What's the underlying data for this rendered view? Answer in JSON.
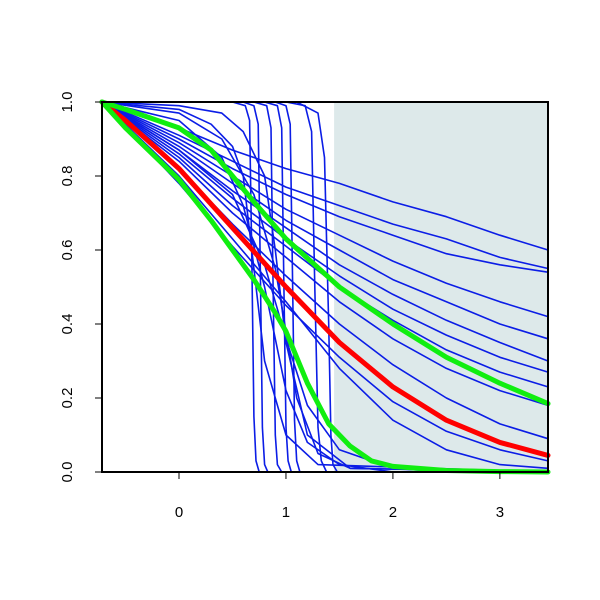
{
  "chart_data": {
    "type": "line",
    "title": "",
    "xlabel": "",
    "ylabel": "",
    "xlim": [
      -0.72,
      3.45
    ],
    "ylim": [
      0.0,
      1.0
    ],
    "x_ticks": [
      {
        "value": 0,
        "label": "0"
      },
      {
        "value": 1,
        "label": "1"
      },
      {
        "value": 2,
        "label": "2"
      },
      {
        "value": 3,
        "label": "3"
      }
    ],
    "y_ticks": [
      {
        "value": 0.0,
        "label": "0.0"
      },
      {
        "value": 0.2,
        "label": "0.2"
      },
      {
        "value": 0.4,
        "label": "0.4"
      },
      {
        "value": 0.6,
        "label": "0.6"
      },
      {
        "value": 0.8,
        "label": "0.8"
      },
      {
        "value": 1.0,
        "label": "1.0"
      }
    ],
    "grid": false,
    "legend": "none",
    "shaded_region": {
      "x_from": 1.45,
      "x_to": 3.45,
      "y_from": 0.0,
      "y_to": 1.0,
      "color": "#dde9ea"
    },
    "colors": {
      "sample_curves": "#0b1de6",
      "mean_curve": "#ff0000",
      "band_curves": "#10ee10"
    },
    "series": [
      {
        "role": "sample",
        "x": [
          -0.72,
          0,
          0.5,
          1,
          1.5,
          2,
          2.5,
          3,
          3.45
        ],
        "y": [
          1.0,
          0.93,
          0.87,
          0.82,
          0.78,
          0.73,
          0.69,
          0.64,
          0.6
        ]
      },
      {
        "role": "sample",
        "x": [
          -0.72,
          0,
          0.5,
          1,
          1.5,
          2,
          2.5,
          3,
          3.45
        ],
        "y": [
          1.0,
          0.91,
          0.84,
          0.77,
          0.72,
          0.67,
          0.63,
          0.58,
          0.55
        ]
      },
      {
        "role": "sample",
        "x": [
          -0.72,
          0,
          0.5,
          1,
          1.5,
          2,
          2.5,
          3,
          3.45
        ],
        "y": [
          1.0,
          0.9,
          0.82,
          0.75,
          0.69,
          0.64,
          0.59,
          0.56,
          0.54
        ]
      },
      {
        "role": "sample",
        "x": [
          -0.72,
          0,
          0.5,
          1,
          1.5,
          2,
          2.5,
          3,
          3.45
        ],
        "y": [
          1.0,
          0.89,
          0.8,
          0.71,
          0.64,
          0.57,
          0.51,
          0.46,
          0.42
        ]
      },
      {
        "role": "sample",
        "x": [
          -0.72,
          0,
          0.5,
          1,
          1.5,
          2,
          2.5,
          3,
          3.45
        ],
        "y": [
          1.0,
          0.88,
          0.78,
          0.68,
          0.6,
          0.52,
          0.46,
          0.4,
          0.36
        ]
      },
      {
        "role": "sample",
        "x": [
          -0.72,
          0,
          0.5,
          1,
          1.5,
          2,
          2.5,
          3,
          3.45
        ],
        "y": [
          1.0,
          0.87,
          0.76,
          0.66,
          0.56,
          0.48,
          0.41,
          0.35,
          0.3
        ]
      },
      {
        "role": "sample",
        "x": [
          -0.72,
          0,
          0.5,
          1,
          1.5,
          2,
          2.5,
          3,
          3.45
        ],
        "y": [
          1.0,
          0.86,
          0.74,
          0.63,
          0.53,
          0.44,
          0.37,
          0.31,
          0.27
        ]
      },
      {
        "role": "sample",
        "x": [
          -0.72,
          0,
          0.5,
          1,
          1.5,
          2,
          2.5,
          3,
          3.45
        ],
        "y": [
          1.0,
          0.85,
          0.72,
          0.61,
          0.5,
          0.41,
          0.33,
          0.27,
          0.23
        ]
      },
      {
        "role": "sample",
        "x": [
          -0.72,
          0,
          0.5,
          1,
          1.5,
          2,
          2.5,
          3,
          3.45
        ],
        "y": [
          1.0,
          0.84,
          0.7,
          0.58,
          0.46,
          0.36,
          0.28,
          0.22,
          0.18
        ]
      },
      {
        "role": "sample",
        "x": [
          -0.72,
          0,
          0.5,
          1,
          1.5,
          2,
          2.5,
          3,
          3.45
        ],
        "y": [
          1.0,
          0.82,
          0.67,
          0.53,
          0.4,
          0.29,
          0.2,
          0.13,
          0.09
        ]
      },
      {
        "role": "sample",
        "x": [
          -0.72,
          0,
          0.5,
          1,
          1.5,
          2,
          2.5,
          3,
          3.45
        ],
        "y": [
          1.0,
          0.78,
          0.61,
          0.45,
          0.31,
          0.19,
          0.11,
          0.06,
          0.03
        ]
      },
      {
        "role": "sample",
        "x": [
          -0.72,
          0,
          0.5,
          1,
          1.5,
          2,
          2.5,
          3,
          3.45
        ],
        "y": [
          1.0,
          0.8,
          0.63,
          0.46,
          0.28,
          0.14,
          0.06,
          0.02,
          0.01
        ]
      },
      {
        "role": "sample",
        "x": [
          -0.72,
          0,
          0.5,
          0.8,
          1,
          1.2,
          1.5,
          2,
          2.5,
          3.45
        ],
        "y": [
          1.0,
          0.87,
          0.75,
          0.56,
          0.36,
          0.18,
          0.06,
          0.01,
          0.0,
          0.0
        ]
      },
      {
        "role": "sample",
        "x": [
          -0.72,
          0,
          0.4,
          0.6,
          0.8,
          1.0,
          1.2,
          1.5,
          2,
          3.45
        ],
        "y": [
          1.0,
          0.95,
          0.85,
          0.72,
          0.5,
          0.22,
          0.08,
          0.02,
          0.0,
          0.0
        ]
      },
      {
        "role": "sample",
        "x": [
          -0.72,
          0,
          0.3,
          0.5,
          0.6,
          0.7,
          0.8,
          1.0,
          1.3,
          3.45
        ],
        "y": [
          1.0,
          0.98,
          0.94,
          0.88,
          0.8,
          0.55,
          0.3,
          0.1,
          0.02,
          0.0
        ]
      },
      {
        "role": "sample",
        "x": [
          -0.72,
          0,
          0.4,
          0.6,
          0.8,
          0.9,
          1.0,
          1.2,
          1.6,
          3.45
        ],
        "y": [
          1.0,
          0.99,
          0.97,
          0.92,
          0.8,
          0.6,
          0.35,
          0.1,
          0.01,
          0.0
        ]
      },
      {
        "role": "sample",
        "x": [
          -0.72,
          0.5,
          0.62,
          0.66,
          0.68,
          0.7,
          0.72,
          0.75,
          0.8,
          3.45
        ],
        "y": [
          1.0,
          1.0,
          0.99,
          0.95,
          0.6,
          0.15,
          0.03,
          0.0,
          0.0,
          0.0
        ]
      },
      {
        "role": "sample",
        "x": [
          -0.72,
          0.6,
          0.7,
          0.74,
          0.76,
          0.78,
          0.8,
          0.83,
          0.9,
          3.45
        ],
        "y": [
          1.0,
          1.0,
          0.99,
          0.94,
          0.55,
          0.12,
          0.02,
          0.0,
          0.0,
          0.0
        ]
      },
      {
        "role": "sample",
        "x": [
          -0.72,
          0.7,
          0.82,
          0.86,
          0.88,
          0.9,
          0.92,
          0.96,
          1.0,
          3.45
        ],
        "y": [
          1.0,
          1.0,
          0.99,
          0.93,
          0.5,
          0.1,
          0.02,
          0.0,
          0.0,
          0.0
        ]
      },
      {
        "role": "sample",
        "x": [
          -0.72,
          0.8,
          0.92,
          0.96,
          0.98,
          1.0,
          1.02,
          1.05,
          1.1,
          3.45
        ],
        "y": [
          1.0,
          1.0,
          0.99,
          0.93,
          0.52,
          0.12,
          0.03,
          0.0,
          0.0,
          0.0
        ]
      },
      {
        "role": "sample",
        "x": [
          -0.72,
          0.9,
          1.0,
          1.04,
          1.06,
          1.08,
          1.1,
          1.13,
          1.2,
          3.45
        ],
        "y": [
          1.0,
          1.0,
          0.99,
          0.94,
          0.55,
          0.14,
          0.03,
          0.0,
          0.0,
          0.0
        ]
      },
      {
        "role": "sample",
        "x": [
          -0.72,
          1.0,
          1.18,
          1.24,
          1.27,
          1.3,
          1.33,
          1.38,
          1.5,
          3.45
        ],
        "y": [
          1.0,
          1.0,
          0.99,
          0.92,
          0.5,
          0.12,
          0.03,
          0.0,
          0.0,
          0.0
        ]
      },
      {
        "role": "sample",
        "x": [
          -0.72,
          1.1,
          1.3,
          1.36,
          1.4,
          1.42,
          1.44,
          1.48,
          1.6,
          3.45
        ],
        "y": [
          1.0,
          1.0,
          0.97,
          0.85,
          0.4,
          0.1,
          0.02,
          0.0,
          0.0,
          0.0
        ]
      },
      {
        "role": "sample",
        "x": [
          -0.72,
          0,
          0.4,
          0.7,
          0.9,
          1.0,
          1.1,
          1.3,
          1.6,
          3.45
        ],
        "y": [
          1.0,
          0.97,
          0.9,
          0.75,
          0.55,
          0.38,
          0.2,
          0.05,
          0.01,
          0.0
        ]
      },
      {
        "role": "mean",
        "x": [
          -0.72,
          -0.5,
          0,
          0.5,
          1.0,
          1.5,
          2.0,
          2.5,
          3.0,
          3.45
        ],
        "y": [
          1.0,
          0.95,
          0.82,
          0.66,
          0.5,
          0.35,
          0.23,
          0.14,
          0.08,
          0.045
        ]
      },
      {
        "role": "band",
        "x": [
          -0.72,
          -0.5,
          0,
          0.3,
          0.5,
          0.7,
          1.0,
          1.5,
          2.0,
          2.5,
          3.0,
          3.45
        ],
        "y": [
          1.0,
          0.98,
          0.93,
          0.87,
          0.8,
          0.73,
          0.63,
          0.5,
          0.4,
          0.31,
          0.24,
          0.185
        ]
      },
      {
        "role": "band",
        "x": [
          -0.72,
          -0.5,
          0,
          0.3,
          0.5,
          0.7,
          0.9,
          1.0,
          1.2,
          1.4,
          1.6,
          1.8,
          2.0,
          2.5,
          3.0,
          3.45
        ],
        "y": [
          1.0,
          0.93,
          0.79,
          0.68,
          0.6,
          0.52,
          0.43,
          0.38,
          0.24,
          0.13,
          0.07,
          0.03,
          0.015,
          0.004,
          0.001,
          0.0
        ]
      }
    ]
  }
}
